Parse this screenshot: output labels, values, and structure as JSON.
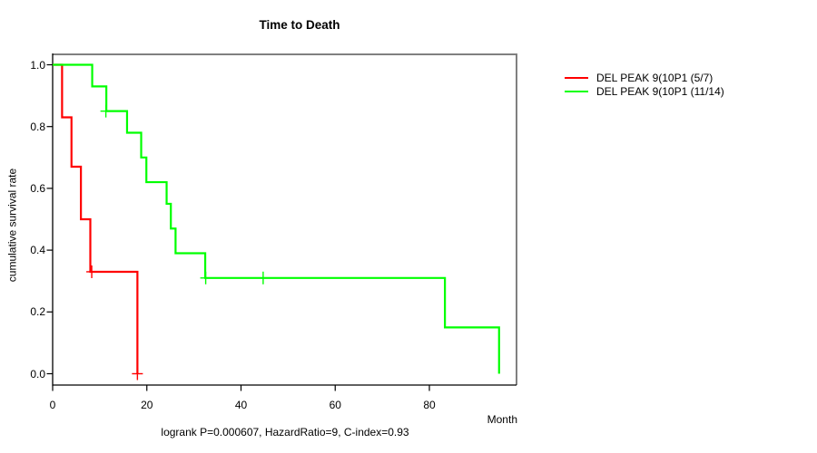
{
  "title": "Time to Death",
  "annotation": "logrank P=0.000607, HazardRatio=9, C-index=0.93",
  "chart_data": {
    "type": "line",
    "subtype": "kaplan-meier-step",
    "title": "Time to Death",
    "xlabel": "Month",
    "ylabel": "cumulative survival rate",
    "xlim": [
      0,
      98.5
    ],
    "ylim": [
      0.0,
      1.0
    ],
    "grid": false,
    "legend_position": "right-outside",
    "x_ticks": [
      {
        "value": 0,
        "label": "0"
      },
      {
        "value": 20,
        "label": "20"
      },
      {
        "value": 40,
        "label": "40"
      },
      {
        "value": 60,
        "label": "60"
      },
      {
        "value": 80,
        "label": "80"
      }
    ],
    "y_ticks": [
      {
        "value": 1.0,
        "label": "1.0"
      },
      {
        "value": 0.8,
        "label": "0.8"
      },
      {
        "value": 0.6,
        "label": "0.6"
      },
      {
        "value": 0.4,
        "label": "0.4"
      },
      {
        "value": 0.2,
        "label": "0.2"
      },
      {
        "value": 0.0,
        "label": "0.0"
      }
    ],
    "annotation": "logrank P=0.000607, HazardRatio=9, C-index=0.93",
    "series": [
      {
        "name": "DEL PEAK 9(10P1 (5/7)",
        "color": "#ff0000",
        "steps": [
          [
            0,
            1.0
          ],
          [
            2,
            0.83
          ],
          [
            4,
            0.67
          ],
          [
            6,
            0.5
          ],
          [
            8,
            0.33
          ],
          [
            18,
            0.0
          ]
        ],
        "censors": [
          [
            8.3,
            0.33
          ],
          [
            18,
            0.0
          ]
        ]
      },
      {
        "name": "DEL PEAK 9(10P1 (11/14)",
        "color": "#00ff00",
        "steps": [
          [
            0,
            1.0
          ],
          [
            8.4,
            0.93
          ],
          [
            11.4,
            0.85
          ],
          [
            15.8,
            0.78
          ],
          [
            18.8,
            0.7
          ],
          [
            19.9,
            0.62
          ],
          [
            24.2,
            0.55
          ],
          [
            25.1,
            0.47
          ],
          [
            26.1,
            0.39
          ],
          [
            32.4,
            0.31
          ],
          [
            83.3,
            0.15
          ],
          [
            94.8,
            0.0
          ]
        ],
        "censors": [
          [
            11.3,
            0.85
          ],
          [
            32.5,
            0.31
          ],
          [
            44.7,
            0.31
          ]
        ]
      }
    ]
  }
}
